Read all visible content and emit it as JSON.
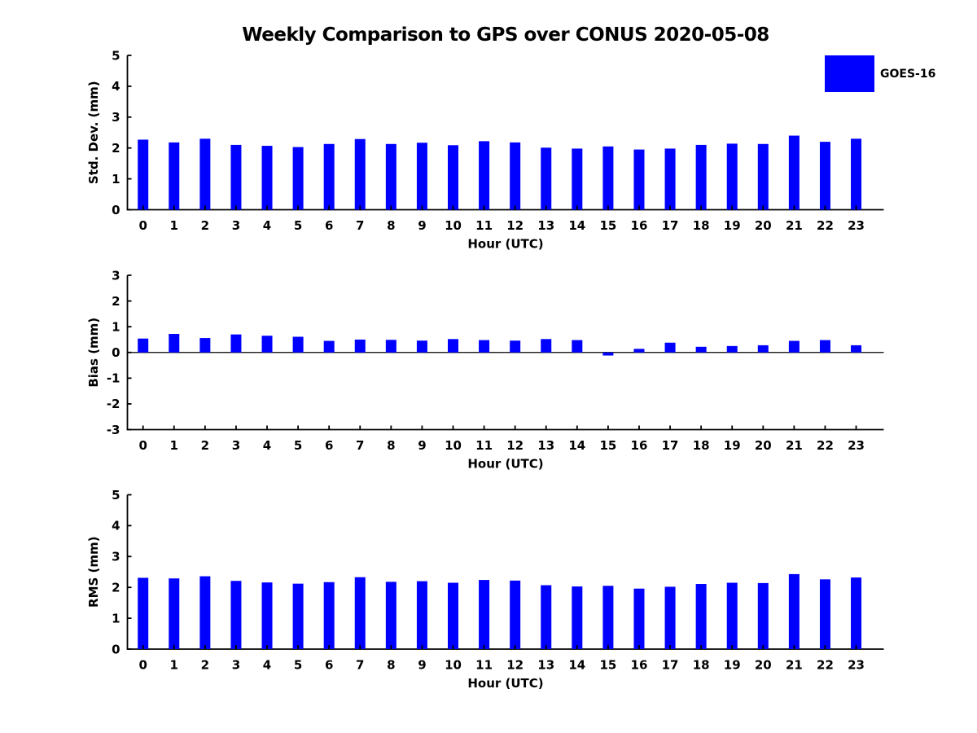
{
  "title": "Weekly Comparison to GPS over CONUS 2020-05-08",
  "legend": {
    "label": "GOES-16",
    "swatch_color": "#0000FF"
  },
  "colors": {
    "bar": "#0000FF",
    "axis": "#000000",
    "background": "#FFFFFF",
    "text": "#000000"
  },
  "chart_data": [
    {
      "type": "bar",
      "ylabel": "Std. Dev. (mm)",
      "xlabel": "Hour (UTC)",
      "legend_entry": "GOES-16",
      "categories": [
        "0",
        "1",
        "2",
        "3",
        "4",
        "5",
        "6",
        "7",
        "8",
        "9",
        "10",
        "11",
        "12",
        "13",
        "14",
        "15",
        "16",
        "17",
        "18",
        "19",
        "20",
        "21",
        "22",
        "23"
      ],
      "values": [
        2.27,
        2.18,
        2.3,
        2.1,
        2.07,
        2.03,
        2.13,
        2.29,
        2.13,
        2.17,
        2.09,
        2.22,
        2.18,
        2.01,
        1.98,
        2.05,
        1.95,
        1.98,
        2.1,
        2.14,
        2.13,
        2.4,
        2.2,
        2.3
      ],
      "ylim": [
        0,
        5
      ],
      "yticks": [
        0,
        1,
        2,
        3,
        4,
        5
      ],
      "grid": false,
      "legend_position": "upper-right-outside"
    },
    {
      "type": "bar",
      "ylabel": "Bias (mm)",
      "xlabel": "Hour (UTC)",
      "legend_entry": "GOES-16",
      "categories": [
        "0",
        "1",
        "2",
        "3",
        "4",
        "5",
        "6",
        "7",
        "8",
        "9",
        "10",
        "11",
        "12",
        "13",
        "14",
        "15",
        "16",
        "17",
        "18",
        "19",
        "20",
        "21",
        "22",
        "23"
      ],
      "values": [
        0.54,
        0.72,
        0.56,
        0.7,
        0.65,
        0.61,
        0.45,
        0.5,
        0.49,
        0.46,
        0.52,
        0.48,
        0.46,
        0.52,
        0.48,
        -0.12,
        0.14,
        0.38,
        0.22,
        0.25,
        0.28,
        0.45,
        0.48,
        0.28
      ],
      "ylim": [
        -3,
        3
      ],
      "yticks": [
        -3,
        -2,
        -1,
        0,
        1,
        2,
        3
      ],
      "zero_line": true,
      "grid": false
    },
    {
      "type": "bar",
      "ylabel": "RMS (mm)",
      "xlabel": "Hour (UTC)",
      "legend_entry": "GOES-16",
      "categories": [
        "0",
        "1",
        "2",
        "3",
        "4",
        "5",
        "6",
        "7",
        "8",
        "9",
        "10",
        "11",
        "12",
        "13",
        "14",
        "15",
        "16",
        "17",
        "18",
        "19",
        "20",
        "21",
        "22",
        "23"
      ],
      "values": [
        2.31,
        2.29,
        2.36,
        2.21,
        2.16,
        2.12,
        2.17,
        2.33,
        2.18,
        2.2,
        2.15,
        2.24,
        2.22,
        2.07,
        2.03,
        2.05,
        1.96,
        2.02,
        2.11,
        2.15,
        2.14,
        2.43,
        2.26,
        2.32
      ],
      "ylim": [
        0,
        5
      ],
      "yticks": [
        0,
        1,
        2,
        3,
        4,
        5
      ],
      "grid": false
    }
  ]
}
